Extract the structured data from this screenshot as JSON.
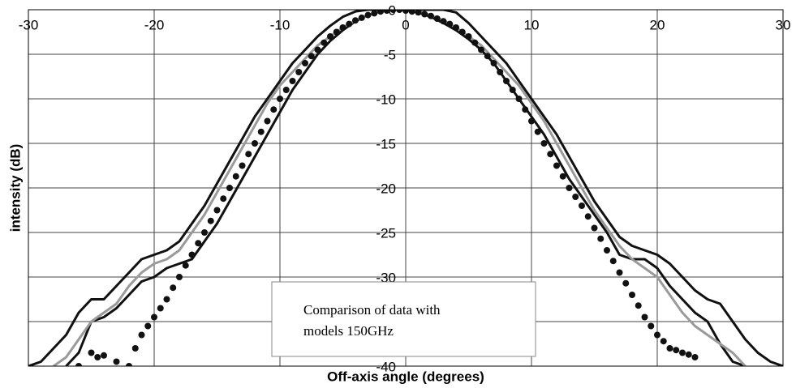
{
  "chart_data": {
    "type": "line",
    "x_label": "Off-axis angle (degrees)",
    "y_label": "intensity (dB)",
    "annotation": [
      "Comparison of data with",
      "models 150GHz"
    ],
    "xlim": [
      -30,
      30
    ],
    "ylim": [
      -40,
      0
    ],
    "xticks": [
      -30,
      -20,
      -10,
      0,
      10,
      20,
      30
    ],
    "yticks": [
      0,
      -5,
      -10,
      -15,
      -20,
      -25,
      -30,
      -35,
      -40
    ],
    "grid": true,
    "series": [
      {
        "type": "line",
        "color": "#111111",
        "x": [
          -30,
          -29,
          -28,
          -27,
          -26,
          -25,
          -24,
          -23,
          -22,
          -21,
          -20,
          -19,
          -18,
          -17,
          -16,
          -15,
          -14,
          -13,
          -12,
          -11,
          -10,
          -9,
          -8,
          -7,
          -6,
          -5,
          -4,
          -3,
          -2,
          -1,
          0,
          1,
          2,
          3,
          4,
          5,
          6,
          7,
          8,
          9,
          10,
          11,
          12,
          13,
          14,
          15,
          16,
          17,
          18,
          19,
          20,
          21,
          22,
          23,
          24,
          25,
          26,
          27,
          28,
          29,
          30
        ],
        "values": [
          -40,
          -39.5,
          -38,
          -36.5,
          -34,
          -32.5,
          -32.5,
          -31,
          -29.5,
          -28,
          -27.5,
          -27,
          -26,
          -24,
          -22,
          -19.5,
          -17,
          -14.5,
          -12,
          -10,
          -8,
          -6,
          -4.5,
          -3,
          -1.8,
          -0.8,
          -0.2,
          0,
          0,
          0,
          0,
          0,
          0,
          0,
          -0.3,
          -1.5,
          -3,
          -4.5,
          -6,
          -8,
          -10,
          -12,
          -14,
          -16.5,
          -19,
          -21.5,
          -23.5,
          -25.5,
          -26.5,
          -27,
          -27.5,
          -28.5,
          -30,
          -31.5,
          -32.5,
          -33,
          -35,
          -37,
          -38.5,
          -39.5,
          -40
        ]
      },
      {
        "type": "line",
        "color": "#111111",
        "x": [
          -27,
          -26,
          -25,
          -24,
          -23,
          -22,
          -21,
          -20,
          -19,
          -18,
          -17,
          -16,
          -15,
          -14,
          -13,
          -12,
          -11,
          -10,
          -9,
          -8,
          -7,
          -6,
          -5,
          -4,
          -3,
          -2,
          -1,
          0,
          1,
          2,
          3,
          4,
          5,
          6,
          7,
          8,
          9,
          10,
          11,
          12,
          13,
          14,
          15,
          16,
          17,
          18,
          19,
          20,
          21,
          22,
          23,
          24,
          25,
          26,
          27
        ],
        "values": [
          -40,
          -38.5,
          -35,
          -34.5,
          -33.5,
          -32,
          -30.5,
          -30,
          -29,
          -28.5,
          -28,
          -26,
          -24,
          -21.5,
          -19,
          -16.5,
          -14,
          -11.5,
          -9,
          -7,
          -5,
          -3.5,
          -2.3,
          -1.3,
          -0.6,
          -0.2,
          0,
          0,
          -0.3,
          -0.8,
          -1.5,
          -2.3,
          -3.3,
          -4.5,
          -6,
          -8,
          -10,
          -12,
          -14,
          -16.5,
          -19,
          -21,
          -23,
          -25,
          -27.5,
          -28,
          -28,
          -29,
          -31,
          -32.5,
          -34,
          -35,
          -37.5,
          -39.5,
          -40
        ]
      },
      {
        "type": "line",
        "color": "#9a9a9a",
        "x": [
          -28,
          -27,
          -26,
          -25,
          -24,
          -23,
          -22,
          -21,
          -20,
          -19,
          -18,
          -17,
          -16,
          -15,
          -14,
          -13,
          -12,
          -11,
          -10,
          -9,
          -8,
          -7,
          -6,
          -5,
          -4,
          -3,
          -2,
          -1,
          0,
          1,
          2,
          3,
          4,
          5,
          6,
          7,
          8,
          9,
          10,
          11,
          12,
          13,
          14,
          15,
          16,
          17,
          18,
          19,
          20,
          21,
          22,
          23,
          24,
          25,
          26,
          27
        ],
        "values": [
          -40,
          -39,
          -37,
          -35,
          -34,
          -33,
          -31,
          -29.5,
          -28.5,
          -28,
          -27,
          -25,
          -23,
          -20.5,
          -18,
          -15.5,
          -13,
          -10.5,
          -8.5,
          -7,
          -5.5,
          -4,
          -3,
          -2,
          -1.2,
          -0.6,
          -0.2,
          0,
          0,
          -0.2,
          -0.6,
          -1.2,
          -2,
          -3,
          -4,
          -5.5,
          -7,
          -8.5,
          -10.5,
          -12.5,
          -15,
          -17.5,
          -20,
          -22.5,
          -24.5,
          -26.5,
          -28,
          -29,
          -30,
          -32,
          -34,
          -35.5,
          -36.5,
          -37.5,
          -38.5,
          -40
        ]
      },
      {
        "type": "scatter",
        "color": "#111111",
        "x": [
          -26,
          -25,
          -24.5,
          -24,
          -23,
          -22,
          -21.5,
          -21,
          -20.5,
          -20,
          -19.5,
          -19,
          -18.5,
          -18,
          -17.5,
          -17,
          -16.5,
          -16,
          -15.5,
          -15,
          -14.5,
          -14,
          -13.5,
          -13,
          -12.5,
          -12,
          -11.5,
          -11,
          -10.5,
          -10,
          -9.5,
          -9,
          -8.5,
          -8,
          -7.5,
          -7,
          -6.5,
          -6,
          -5.5,
          -5,
          -4.5,
          -4,
          -3.5,
          -3,
          -2.5,
          -2,
          -1.5,
          -1,
          -0.5,
          0,
          0.5,
          1,
          1.5,
          2,
          2.5,
          3,
          3.5,
          4,
          4.5,
          5,
          5.5,
          6,
          6.5,
          7,
          7.5,
          8,
          8.5,
          9,
          9.5,
          10,
          10.5,
          11,
          11.5,
          12,
          12.5,
          13,
          13.5,
          14,
          14.5,
          15,
          15.5,
          16,
          16.5,
          17,
          17.5,
          18,
          18.5,
          19,
          19.5,
          20,
          20.5,
          21,
          21.5,
          22,
          22.5,
          23
        ],
        "values": [
          -40,
          -38.5,
          -39,
          -38.8,
          -39.5,
          -40,
          -38,
          -36.5,
          -35.5,
          -34.5,
          -33.5,
          -32.5,
          -31.2,
          -30,
          -28.7,
          -27.5,
          -26.2,
          -25,
          -23.7,
          -22.5,
          -21.2,
          -20,
          -18.7,
          -17.5,
          -16.2,
          -15,
          -13.7,
          -12.5,
          -11.2,
          -10,
          -9,
          -8,
          -7,
          -6,
          -5.2,
          -4.5,
          -3.7,
          -3,
          -2.5,
          -2,
          -1.6,
          -1.2,
          -0.9,
          -0.6,
          -0.4,
          -0.2,
          -0.1,
          0,
          0,
          -0.1,
          -0.2,
          -0.3,
          -0.5,
          -0.7,
          -1,
          -1.3,
          -1.6,
          -2,
          -2.5,
          -3,
          -3.7,
          -4.5,
          -5.2,
          -6,
          -7,
          -8,
          -9,
          -10,
          -11.2,
          -12.5,
          -13.7,
          -15,
          -16.2,
          -17.5,
          -18.7,
          -20,
          -21,
          -22,
          -23.2,
          -24.5,
          -25.7,
          -27,
          -28.2,
          -29.5,
          -30.7,
          -32,
          -33.2,
          -34.5,
          -35.5,
          -36.5,
          -37.2,
          -38,
          -38.2,
          -38.5,
          -38.7,
          -39
        ]
      }
    ]
  }
}
